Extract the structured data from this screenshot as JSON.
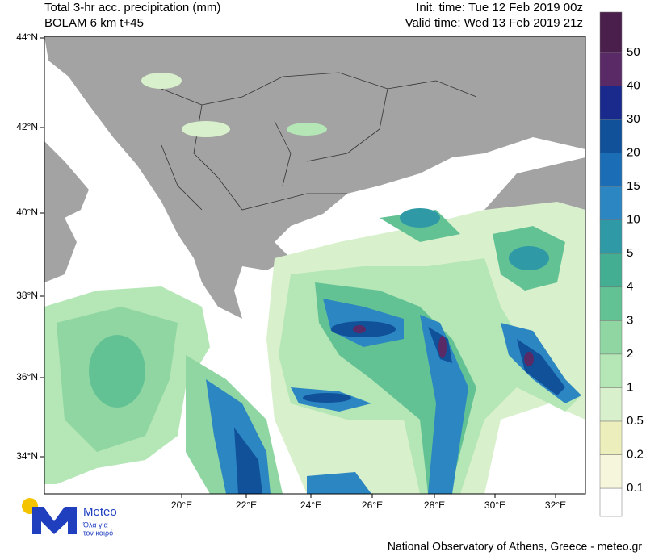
{
  "header": {
    "title": "Total 3-hr acc. precipitation (mm)",
    "model": "BOLAM 6 km t+45",
    "init_time": "Init. time: Tue 12 Feb 2019 00z",
    "valid_time": "Valid time: Wed 13 Feb 2019 21z"
  },
  "map": {
    "lat_labels": [
      "44°N",
      "42°N",
      "40°N",
      "38°N",
      "36°N",
      "34°N"
    ],
    "lon_labels": [
      "20°E",
      "22°E",
      "24°E",
      "26°E",
      "28°E",
      "30°E",
      "32°E"
    ]
  },
  "colorbar": {
    "labels": [
      "0.1",
      "0.2",
      "0.5",
      "1",
      "2",
      "3",
      "4",
      "5",
      "10",
      "15",
      "20",
      "30",
      "40",
      "50"
    ],
    "colors": [
      "#ffffff",
      "#f6f6dc",
      "#ecefbc",
      "#d9f0cc",
      "#b4e6b6",
      "#8fd6a2",
      "#63c294",
      "#43ae92",
      "#2f9aa6",
      "#2b86c2",
      "#1b6db6",
      "#10519a",
      "#1a2a8c",
      "#5a2a66",
      "#4a1f4c"
    ]
  },
  "logo": {
    "name": "Meteo",
    "tagline_1": "Όλα για",
    "tagline_2": "τον καιρό"
  },
  "footer": {
    "credit": "National Observatory of Athens, Greece - meteo.gr"
  }
}
